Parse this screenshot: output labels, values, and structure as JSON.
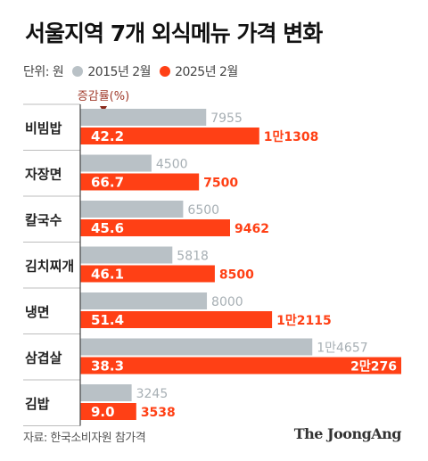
{
  "title": "서울지역 7개 외식메뉴 가격 변화",
  "legend": {
    "unit_label": "단위: 원",
    "series_2015": "2015년 2월",
    "series_2025": "2025년 2월"
  },
  "increase_header": "증감률(%)",
  "source": "자료: 한국소비자원 참가격",
  "brand": "The JoongAng",
  "chart_data": {
    "type": "bar",
    "orientation": "horizontal",
    "title": "서울지역 7개 외식메뉴 가격 변화",
    "unit": "원",
    "categories": [
      "비빔밥",
      "자장면",
      "칼국수",
      "김치찌개",
      "냉면",
      "삼겹살",
      "김밥"
    ],
    "series": [
      {
        "name": "2015년 2월",
        "color": "#b9c1c6",
        "values": [
          7955,
          4500,
          6500,
          5818,
          8000,
          14657,
          3245
        ],
        "labels": [
          "7955",
          "4500",
          "6500",
          "5818",
          "8000",
          "1만4657",
          "3245"
        ]
      },
      {
        "name": "2025년 2월",
        "color": "#ff4015",
        "values": [
          11308,
          7500,
          9462,
          8500,
          12115,
          20276,
          3538
        ],
        "labels": [
          "1만1308",
          "7500",
          "9462",
          "8500",
          "1만2115",
          "2만276",
          "3538"
        ]
      }
    ],
    "increase_rate_pct": [
      "42.2",
      "66.7",
      "45.6",
      "46.1",
      "51.4",
      "38.3",
      "9.0"
    ],
    "xlim": [
      0,
      20276
    ],
    "grid": false,
    "legend_position": "top-left"
  }
}
